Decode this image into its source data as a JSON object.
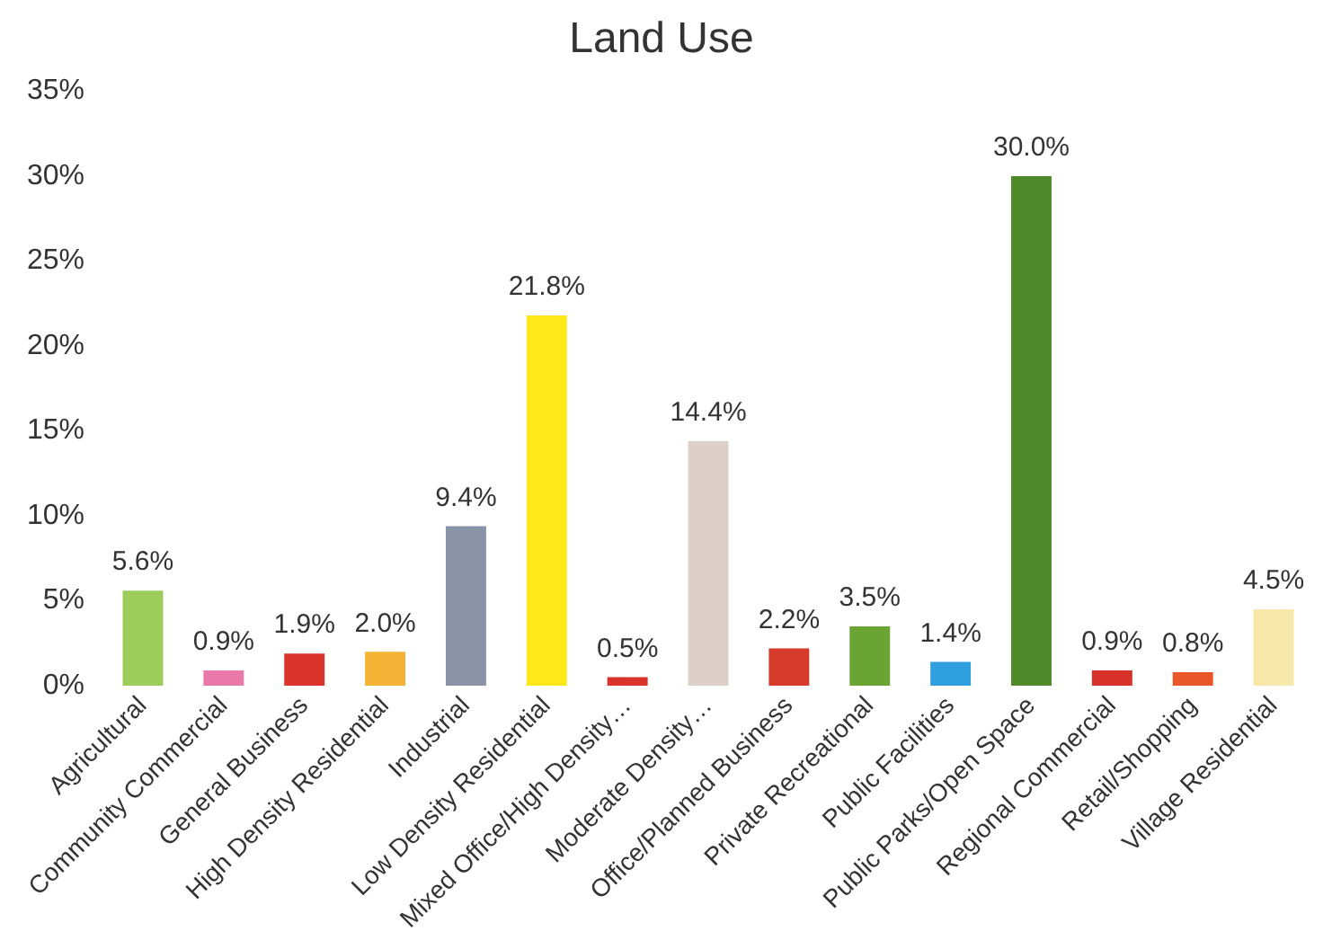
{
  "chart_data": {
    "type": "bar",
    "title": "Land Use",
    "categories": [
      "Agricultural",
      "Community Commercial",
      "General Business",
      "High Density Residential",
      "Industrial",
      "Low Density Residential",
      "Mixed Office/High Density…",
      "Moderate Density…",
      "Office/Planned Business",
      "Private Recreational",
      "Public Facilities",
      "Public Parks/Open Space",
      "Regional Commercial",
      "Retail/Shopping",
      "Village Residential"
    ],
    "values": [
      5.6,
      0.9,
      1.9,
      2.0,
      9.4,
      21.8,
      0.5,
      14.4,
      2.2,
      3.5,
      1.4,
      30.0,
      0.9,
      0.8,
      4.5
    ],
    "value_labels": [
      "5.6%",
      "0.9%",
      "1.9%",
      "2.0%",
      "9.4%",
      "21.8%",
      "0.5%",
      "14.4%",
      "2.2%",
      "3.5%",
      "1.4%",
      "30.0%",
      "0.9%",
      "0.8%",
      "4.5%"
    ],
    "colors": [
      "#9ccc5a",
      "#e879a8",
      "#d9332b",
      "#f5b335",
      "#8a93a8",
      "#ffe81a",
      "#d9332b",
      "#ddd0c8",
      "#d63a2a",
      "#6aa534",
      "#2f9fe0",
      "#4e8a2a",
      "#d8302a",
      "#e8562a",
      "#f7e7a8"
    ],
    "ylim": [
      0,
      35
    ],
    "yticks": [
      {
        "value": 0,
        "label": "0%"
      },
      {
        "value": 5,
        "label": "5%"
      },
      {
        "value": 10,
        "label": "10%"
      },
      {
        "value": 15,
        "label": "15%"
      },
      {
        "value": 20,
        "label": "20%"
      },
      {
        "value": 25,
        "label": "25%"
      },
      {
        "value": 30,
        "label": "30%"
      },
      {
        "value": 35,
        "label": "35%"
      }
    ],
    "grid": false,
    "legend": false
  }
}
